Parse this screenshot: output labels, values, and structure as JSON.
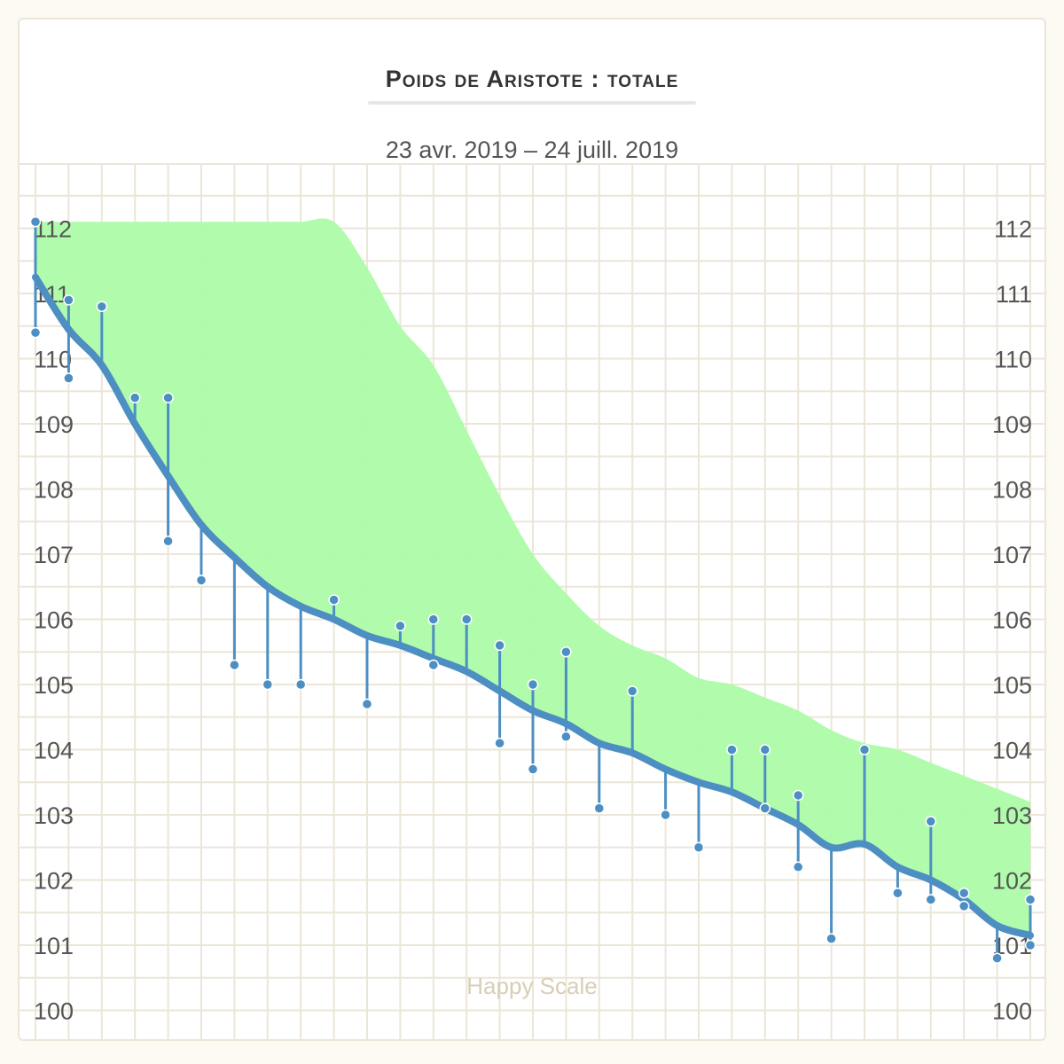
{
  "header": {
    "title": "Poids de Aristote : totale",
    "date_range": "23 avr. 2019 – 24 juill. 2019"
  },
  "watermark": "Happy Scale",
  "colors": {
    "trend": "#4d8fc2",
    "weigh_in": "#4d8fc2",
    "band": "#adfca8",
    "grid": "#ece6d8",
    "card_border": "#ece6d8"
  },
  "chart_data": {
    "type": "line",
    "title": "Poids de Aristote : totale",
    "subtitle": "23 avr. 2019 – 24 juill. 2019",
    "ylim": [
      99.5,
      113
    ],
    "y_ticks": [
      100,
      101,
      102,
      103,
      104,
      105,
      106,
      107,
      108,
      109,
      110,
      111,
      112
    ],
    "grid": true,
    "series": [
      {
        "role": "trend",
        "values": [
          111.25,
          110.45,
          109.9,
          109.0,
          108.2,
          107.45,
          106.95,
          106.5,
          106.2,
          106.0,
          105.75,
          105.6,
          105.4,
          105.2,
          104.9,
          104.6,
          104.4,
          104.1,
          103.95,
          103.7,
          103.5,
          103.35,
          103.1,
          102.85,
          102.5,
          102.55,
          102.2,
          102.0,
          101.7,
          101.3,
          101.15
        ]
      },
      {
        "role": "weigh_ins",
        "values": [
          [
            112.1,
            110.4
          ],
          [
            110.9,
            109.7
          ],
          [
            110.8
          ],
          [
            109.4
          ],
          [
            109.4,
            107.2
          ],
          [
            106.6
          ],
          [
            105.3
          ],
          [
            105.0
          ],
          [
            105.0
          ],
          [
            106.3
          ],
          [
            104.7
          ],
          [
            105.9
          ],
          [
            106.0,
            105.3
          ],
          [
            106.0
          ],
          [
            105.6,
            104.1
          ],
          [
            105.0,
            103.7
          ],
          [
            105.5,
            104.2
          ],
          [
            103.1
          ],
          [
            104.9
          ],
          [
            103.0
          ],
          [
            102.5
          ],
          [
            104.0
          ],
          [
            104.0,
            103.1
          ],
          [
            103.3,
            102.2
          ],
          [
            101.1
          ],
          [
            104.0
          ],
          [
            101.8
          ],
          [
            102.9,
            101.7
          ],
          [
            101.8,
            101.6
          ],
          [
            100.8
          ],
          [
            101.7,
            101.0
          ]
        ]
      },
      {
        "role": "band_upper",
        "values": [
          112.1,
          112.1,
          112.1,
          112.1,
          112.1,
          112.1,
          112.1,
          112.1,
          112.1,
          112.1,
          111.4,
          110.5,
          109.9,
          108.9,
          107.9,
          107.0,
          106.4,
          105.9,
          105.6,
          105.4,
          105.1,
          105.0,
          104.8,
          104.6,
          104.3,
          104.1,
          104.0,
          103.8,
          103.6,
          103.4,
          103.2
        ]
      }
    ]
  }
}
